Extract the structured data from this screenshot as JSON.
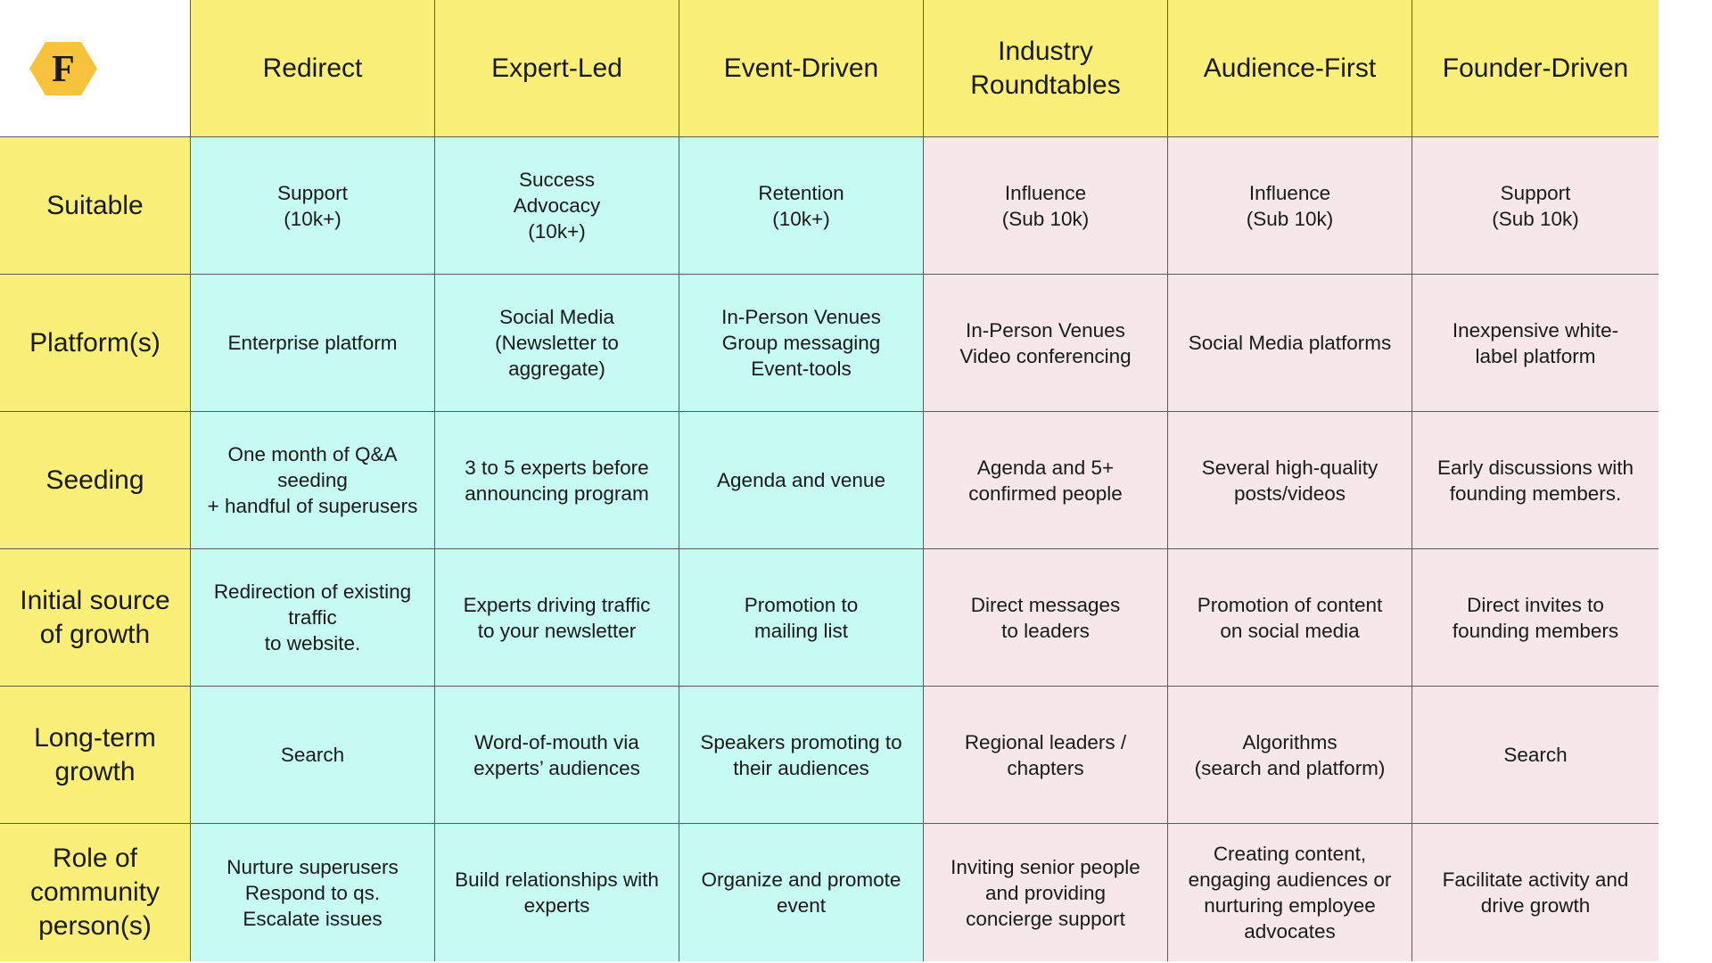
{
  "logo": {
    "letter": "F",
    "color": "#f8c33c",
    "icon": "hexagon-f-logo-icon"
  },
  "columns": [
    "Redirect",
    "Expert-Led",
    "Event-Driven",
    "Industry\nRoundtables",
    "Audience-First",
    "Founder-Driven"
  ],
  "colors": {
    "header": "#faef78",
    "teal": "#c6faf2",
    "pink": "#f6e8ea",
    "border": "#5a5a5a"
  },
  "rows": [
    {
      "label": "Suitable",
      "cells": [
        "Support\n(10k+)",
        "Success\nAdvocacy\n(10k+)",
        "Retention\n(10k+)",
        "Influence\n(Sub 10k)",
        "Influence\n(Sub 10k)",
        "Support\n(Sub 10k)"
      ]
    },
    {
      "label": "Platform(s)",
      "cells": [
        "Enterprise platform",
        "Social Media\n(Newsletter to\naggregate)",
        "In-Person Venues\nGroup messaging\nEvent-tools",
        "In-Person Venues\nVideo conferencing",
        "Social Media platforms",
        "Inexpensive white-\nlabel platform"
      ]
    },
    {
      "label": "Seeding",
      "cells": [
        "One month of Q&A seeding\n+ handful of superusers",
        "3 to 5 experts before\nannouncing program",
        "Agenda and venue",
        "Agenda and 5+\nconfirmed people",
        "Several high-quality\nposts/videos",
        "Early discussions with\nfounding members."
      ]
    },
    {
      "label": "Initial source\nof growth",
      "cells": [
        "Redirection of existing traffic\nto website.",
        "Experts driving traffic\nto your newsletter",
        "Promotion to\nmailing list",
        "Direct messages\nto leaders",
        "Promotion of content\non social media",
        "Direct invites to\nfounding members"
      ]
    },
    {
      "label": "Long-term\ngrowth",
      "cells": [
        "Search",
        "Word-of-mouth via\nexperts’ audiences",
        "Speakers promoting to\ntheir audiences",
        "Regional leaders /\nchapters",
        "Algorithms\n(search and platform)",
        "Search"
      ]
    },
    {
      "label": "Role of\ncommunity\nperson(s)",
      "cells": [
        "Nurture superusers\nRespond to qs.\nEscalate issues",
        "Build relationships with\nexperts",
        "Organize and promote\nevent",
        "Inviting senior people\nand providing\nconcierge support",
        "Creating content,\nengaging audiences or\nnurturing employee\nadvocates",
        "Facilitate activity and\ndrive growth"
      ]
    }
  ]
}
